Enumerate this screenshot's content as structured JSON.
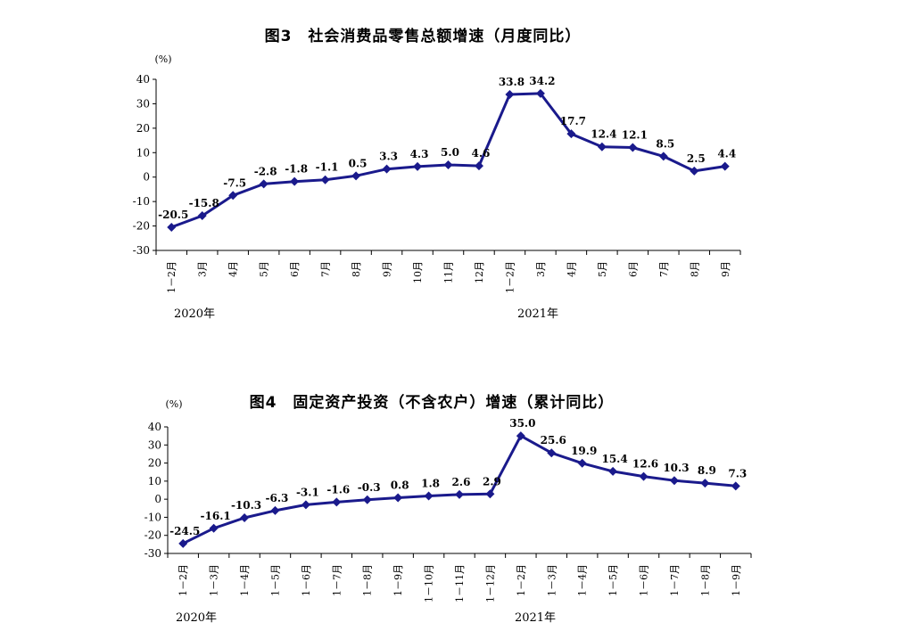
{
  "chart_data": [
    {
      "type": "line",
      "title": "图3　社会消费品零售总额增速（月度同比）",
      "unit": "(%)",
      "ylim": [
        -30,
        40
      ],
      "yticks": [
        -30,
        -20,
        -10,
        0,
        10,
        20,
        30,
        40
      ],
      "categories": [
        "1－2月",
        "3月",
        "4月",
        "5月",
        "6月",
        "7月",
        "8月",
        "9月",
        "10月",
        "11月",
        "12月",
        "1－2月",
        "3月",
        "4月",
        "5月",
        "6月",
        "7月",
        "8月",
        "9月"
      ],
      "values": [
        -20.5,
        -15.8,
        -7.5,
        -2.8,
        -1.8,
        -1.1,
        0.5,
        3.3,
        4.3,
        5.0,
        4.6,
        33.8,
        34.2,
        17.7,
        12.4,
        12.1,
        8.5,
        2.5,
        4.4
      ],
      "labels": [
        "-20.5",
        "-15.8",
        "-7.5",
        "-2.8",
        "-1.8",
        "-1.1",
        "0.5",
        "3.3",
        "4.3",
        "5.0",
        "4.6",
        "33.8",
        "34.2",
        "17.7",
        "12.4",
        "12.1",
        "8.5",
        "2.5",
        "4.4"
      ],
      "year_labels": [
        "2020年",
        "2021年"
      ],
      "series_color": "#1a1a8c"
    },
    {
      "type": "line",
      "title": "图4　固定资产投资（不含农户）增速（累计同比）",
      "unit": "(%)",
      "ylim": [
        -30,
        40
      ],
      "yticks": [
        -30,
        -20,
        -10,
        0,
        10,
        20,
        30,
        40
      ],
      "categories": [
        "1－2月",
        "1－3月",
        "1－4月",
        "1－5月",
        "1－6月",
        "1－7月",
        "1－8月",
        "1－9月",
        "1－10月",
        "1－11月",
        "1－12月",
        "1－2月",
        "1－3月",
        "1－4月",
        "1－5月",
        "1－6月",
        "1－7月",
        "1－8月",
        "1－9月"
      ],
      "values": [
        -24.5,
        -16.1,
        -10.3,
        -6.3,
        -3.1,
        -1.6,
        -0.3,
        0.8,
        1.8,
        2.6,
        2.9,
        35.0,
        25.6,
        19.9,
        15.4,
        12.6,
        10.3,
        8.9,
        7.3
      ],
      "labels": [
        "-24.5",
        "-16.1",
        "-10.3",
        "-6.3",
        "-3.1",
        "-1.6",
        "-0.3",
        "0.8",
        "1.8",
        "2.6",
        "2.9",
        "35.0",
        "25.6",
        "19.9",
        "15.4",
        "12.6",
        "10.3",
        "8.9",
        "7.3"
      ],
      "year_labels": [
        "2020年",
        "2021年"
      ],
      "series_color": "#1a1a8c"
    }
  ]
}
